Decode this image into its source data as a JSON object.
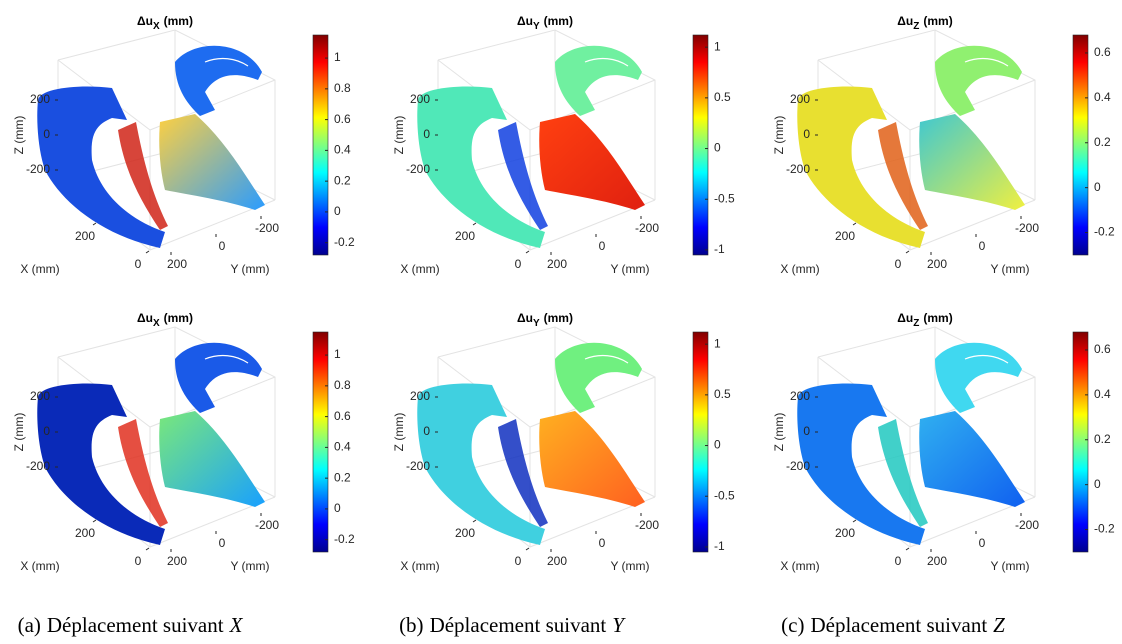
{
  "axes": {
    "zlabel": "Z (mm)",
    "xlabel": "X (mm)",
    "ylabel": "Y (mm)",
    "zticks": [
      200,
      0,
      -200
    ],
    "xticks": [
      200,
      0
    ],
    "yticks": [
      200,
      0,
      -200
    ]
  },
  "columns": [
    {
      "caption": {
        "label": "(a)",
        "text": "Déplacement suivant",
        "var": "X"
      },
      "plots": [
        {
          "title": {
            "symbol": "Δu",
            "sub": "X",
            "unit": "(mm)"
          },
          "colorbar": {
            "lim": [
              -0.28,
              1.15
            ],
            "ticks": [
              -0.2,
              0,
              0.2,
              0.4,
              0.6,
              0.8,
              1
            ]
          }
        },
        {
          "title": {
            "symbol": "Δu",
            "sub": "X",
            "unit": "(mm)"
          },
          "colorbar": {
            "lim": [
              -0.28,
              1.15
            ],
            "ticks": [
              -0.2,
              0,
              0.2,
              0.4,
              0.6,
              0.8,
              1
            ]
          }
        }
      ]
    },
    {
      "caption": {
        "label": "(b)",
        "text": "Déplacement suivant",
        "var": "Y"
      },
      "plots": [
        {
          "title": {
            "symbol": "Δu",
            "sub": "Y",
            "unit": "(mm)"
          },
          "colorbar": {
            "lim": [
              -1.05,
              1.12
            ],
            "ticks": [
              -1,
              -0.5,
              0,
              0.5,
              1
            ]
          }
        },
        {
          "title": {
            "symbol": "Δu",
            "sub": "Y",
            "unit": "(mm)"
          },
          "colorbar": {
            "lim": [
              -1.05,
              1.12
            ],
            "ticks": [
              -1,
              -0.5,
              0,
              0.5,
              1
            ]
          }
        }
      ]
    },
    {
      "caption": {
        "label": "(c)",
        "text": "Déplacement suivant",
        "var": "Z"
      },
      "plots": [
        {
          "title": {
            "symbol": "Δu",
            "sub": "Z",
            "unit": "(mm)"
          },
          "colorbar": {
            "lim": [
              -0.3,
              0.68
            ],
            "ticks": [
              -0.2,
              0,
              0.2,
              0.4,
              0.6
            ]
          }
        },
        {
          "title": {
            "symbol": "Δu",
            "sub": "Z",
            "unit": "(mm)"
          },
          "colorbar": {
            "lim": [
              -0.3,
              0.68
            ],
            "ticks": [
              -0.2,
              0,
              0.2,
              0.4,
              0.6
            ]
          }
        }
      ]
    }
  ]
}
